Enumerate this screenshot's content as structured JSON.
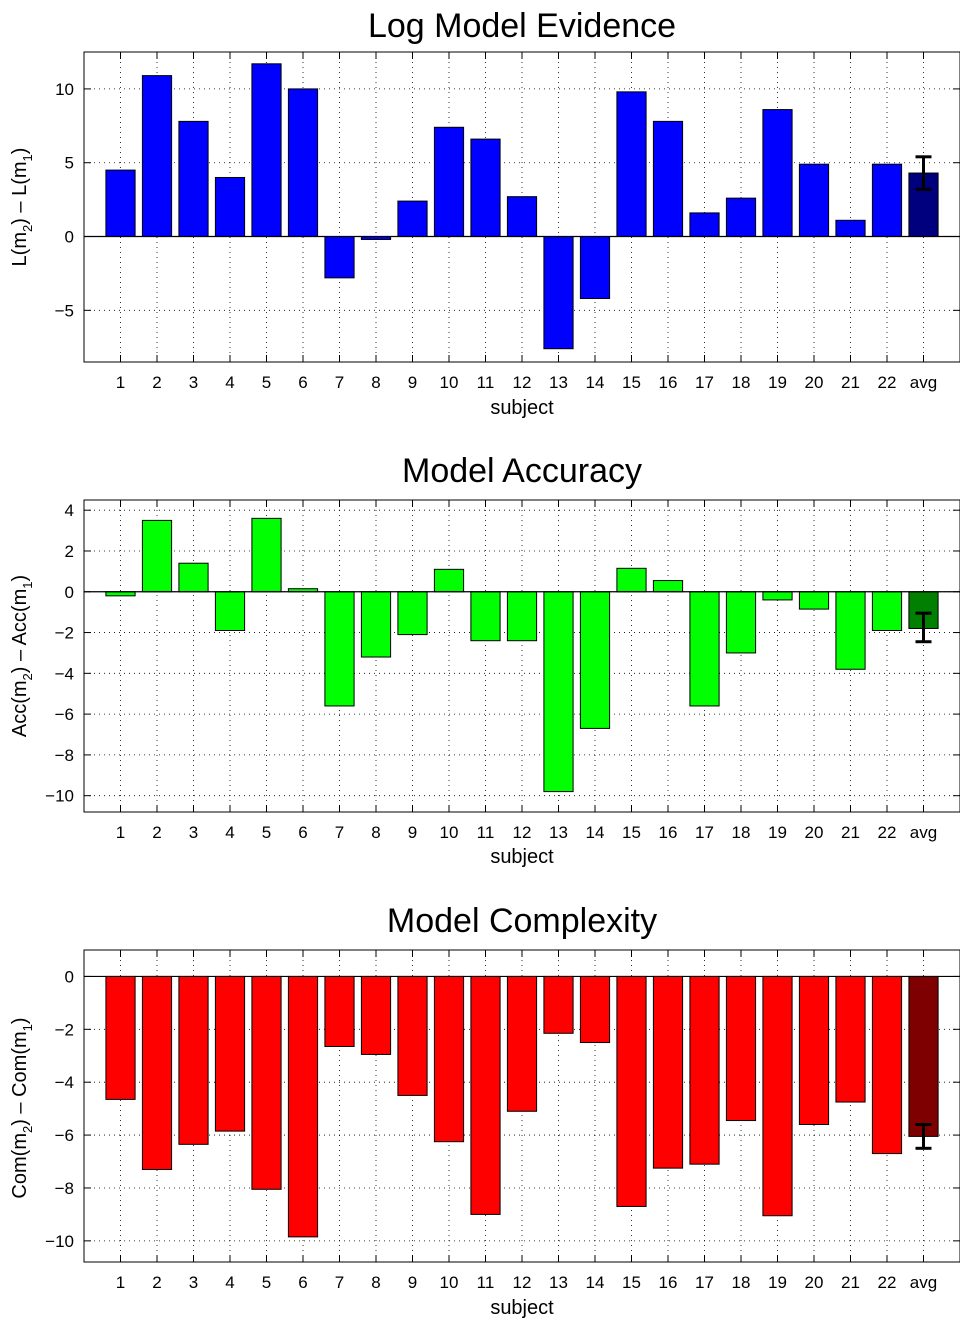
{
  "chart_data": [
    {
      "type": "bar",
      "title": "Log Model Evidence",
      "ylabel": {
        "pre": "L(m",
        "sub1": "2",
        "mid": ") – L(m",
        "sub2": "1",
        "post": ")"
      },
      "xlabel": "subject",
      "categories": [
        "1",
        "2",
        "3",
        "4",
        "5",
        "6",
        "7",
        "8",
        "9",
        "10",
        "11",
        "12",
        "13",
        "14",
        "15",
        "16",
        "17",
        "18",
        "19",
        "20",
        "21",
        "22",
        "avg"
      ],
      "values": [
        4.5,
        10.9,
        7.8,
        4.0,
        11.7,
        10.0,
        -2.8,
        -0.2,
        2.4,
        7.4,
        6.6,
        2.7,
        -7.6,
        -4.2,
        9.8,
        7.8,
        1.6,
        2.6,
        8.6,
        4.9,
        1.1,
        4.9,
        4.3
      ],
      "errorbar": {
        "index": 22,
        "low": 3.2,
        "high": 5.4
      },
      "ylim": [
        -8.5,
        12.5
      ],
      "yticks": [
        -5,
        0,
        5,
        10
      ],
      "bar_color": "#0000ff",
      "avg_color": "#00007f",
      "grid": true
    },
    {
      "type": "bar",
      "title": "Model Accuracy",
      "ylabel": {
        "pre": "Acc(m",
        "sub1": "2",
        "mid": ") – Acc(m",
        "sub2": "1",
        "post": ")"
      },
      "xlabel": "subject",
      "categories": [
        "1",
        "2",
        "3",
        "4",
        "5",
        "6",
        "7",
        "8",
        "9",
        "10",
        "11",
        "12",
        "13",
        "14",
        "15",
        "16",
        "17",
        "18",
        "19",
        "20",
        "21",
        "22",
        "avg"
      ],
      "values": [
        -0.2,
        3.5,
        1.4,
        -1.9,
        3.6,
        0.15,
        -5.6,
        -3.2,
        -2.1,
        1.1,
        -2.4,
        -2.4,
        -9.8,
        -6.7,
        1.15,
        0.55,
        -5.6,
        -3.0,
        -0.4,
        -0.85,
        -3.8,
        -1.9,
        -1.8
      ],
      "errorbar": {
        "index": 22,
        "low": -2.45,
        "high": -1.05
      },
      "ylim": [
        -10.8,
        4.5
      ],
      "yticks": [
        -10,
        -8,
        -6,
        -4,
        -2,
        0,
        2,
        4
      ],
      "bar_color": "#00ff00",
      "avg_color": "#007f00",
      "grid": true
    },
    {
      "type": "bar",
      "title": "Model Complexity",
      "ylabel": {
        "pre": "Com(m",
        "sub1": "2",
        "mid": ") – Com(m",
        "sub2": "1",
        "post": ")"
      },
      "xlabel": "subject",
      "categories": [
        "1",
        "2",
        "3",
        "4",
        "5",
        "6",
        "7",
        "8",
        "9",
        "10",
        "11",
        "12",
        "13",
        "14",
        "15",
        "16",
        "17",
        "18",
        "19",
        "20",
        "21",
        "22",
        "avg"
      ],
      "values": [
        -4.65,
        -7.3,
        -6.35,
        -5.85,
        -8.05,
        -9.85,
        -2.65,
        -2.95,
        -4.5,
        -6.25,
        -9.0,
        -5.1,
        -2.15,
        -2.5,
        -8.7,
        -7.25,
        -7.1,
        -5.45,
        -9.05,
        -5.6,
        -4.75,
        -6.7,
        -6.05
      ],
      "errorbar": {
        "index": 22,
        "low": -6.5,
        "high": -5.6
      },
      "ylim": [
        -10.8,
        1.0
      ],
      "yticks": [
        -10,
        -8,
        -6,
        -4,
        -2,
        0
      ],
      "bar_color": "#ff0000",
      "avg_color": "#7f0000",
      "grid": true
    }
  ]
}
